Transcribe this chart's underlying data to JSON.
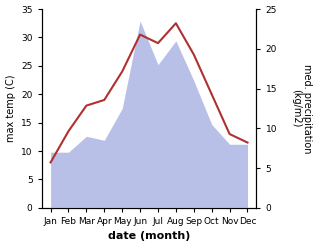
{
  "months": [
    "Jan",
    "Feb",
    "Mar",
    "Apr",
    "May",
    "Jun",
    "Jul",
    "Aug",
    "Sep",
    "Oct",
    "Nov",
    "Dec"
  ],
  "temperature": [
    8.0,
    13.5,
    18.0,
    19.0,
    24.0,
    30.5,
    29.0,
    32.5,
    27.0,
    20.0,
    13.0,
    11.5
  ],
  "precip_right": [
    7.0,
    7.0,
    9.0,
    8.5,
    12.5,
    23.5,
    18.0,
    21.0,
    16.0,
    10.5,
    8.0,
    8.0
  ],
  "temp_color": "#b03030",
  "precip_color": "#b8c0e8",
  "ylabel_left": "max temp (C)",
  "ylabel_right": "med. precipitation\n(kg/m2)",
  "xlabel": "date (month)",
  "ylim_left": [
    0,
    35
  ],
  "ylim_right": [
    0,
    25
  ],
  "yticks_left": [
    0,
    5,
    10,
    15,
    20,
    25,
    30,
    35
  ],
  "yticks_right": [
    0,
    5,
    10,
    15,
    20,
    25
  ],
  "bg_color": "#ffffff",
  "figsize": [
    3.18,
    2.47
  ],
  "dpi": 100
}
